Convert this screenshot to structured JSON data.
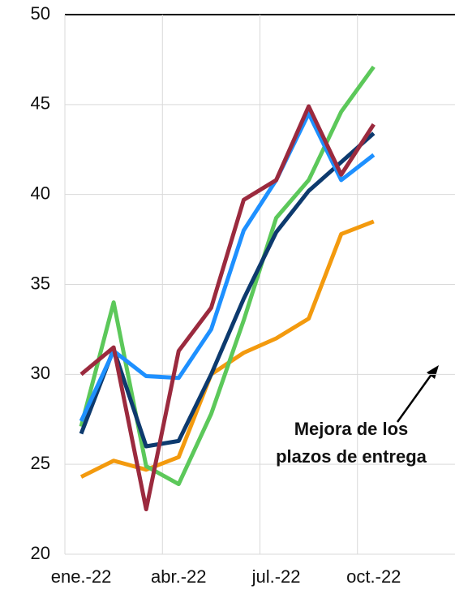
{
  "chart_data": {
    "type": "line",
    "categories": [
      "ene.-22",
      null,
      null,
      "abr.-22",
      null,
      null,
      "jul.-22",
      null,
      null,
      "oct.-22",
      null,
      null
    ],
    "series": [
      {
        "color": "#f39a0e",
        "values": [
          24.3,
          25.2,
          24.7,
          25.4,
          30.0,
          31.2,
          32.0,
          33.1,
          37.8,
          38.5,
          null,
          null
        ]
      },
      {
        "color": "#5cc85a",
        "values": [
          27.1,
          34.0,
          24.9,
          23.9,
          27.8,
          33.0,
          38.7,
          40.8,
          44.6,
          47.1,
          null,
          null
        ]
      },
      {
        "color": "#0d3a6e",
        "values": [
          26.7,
          31.4,
          26.0,
          26.3,
          30.0,
          34.2,
          37.9,
          40.2,
          41.8,
          43.4,
          null,
          null
        ]
      },
      {
        "color": "#1e90ff",
        "values": [
          27.4,
          31.3,
          29.9,
          29.8,
          32.5,
          38.0,
          40.8,
          44.5,
          40.8,
          42.2,
          null,
          null
        ]
      },
      {
        "color": "#9b2a3e",
        "values": [
          30.0,
          31.5,
          22.5,
          31.3,
          33.7,
          39.7,
          40.8,
          44.9,
          41.1,
          43.9,
          null,
          null
        ]
      }
    ],
    "ylim": [
      20,
      50
    ],
    "yticks": [
      20,
      25,
      30,
      35,
      40,
      45,
      50
    ],
    "grid": true,
    "annotation": [
      "Mejora de los",
      "plazos de entrega"
    ]
  }
}
